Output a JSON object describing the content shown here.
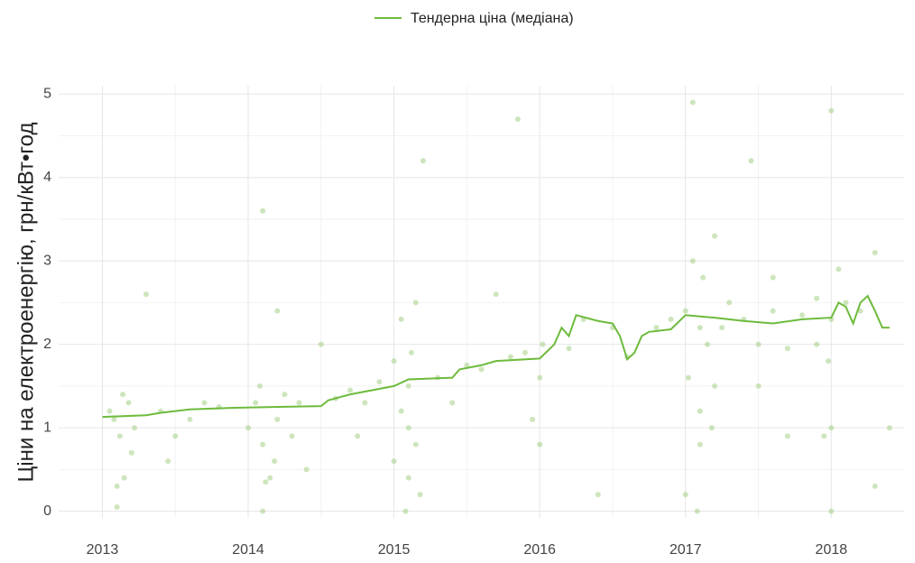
{
  "chart_data": {
    "type": "scatter",
    "y_label": "Ціни на електроенергію, грн/кВт•год",
    "xlim": [
      2012.7,
      2018.5
    ],
    "xticks": [
      2013,
      2014,
      2015,
      2016,
      2017,
      2018
    ],
    "ylim": [
      -0.08,
      5.1
    ],
    "yticks": [
      0,
      1,
      2,
      3,
      4,
      5
    ],
    "grid": true,
    "legend": "top",
    "points": {
      "color": "#9ccc7a",
      "x": [
        2013.08,
        2013.12,
        2013.15,
        2013.1,
        2013.18,
        2013.05,
        2013.2,
        2013.14,
        2013.1,
        2013.22,
        2013.4,
        2013.6,
        2013.7,
        2013.5,
        2013.8,
        2013.3,
        2013.45,
        2014.05,
        2014.1,
        2014.15,
        2014.08,
        2014.2,
        2014.12,
        2014.18,
        2014.1,
        2014.25,
        2014.0,
        2014.3,
        2014.1,
        2014.2,
        2014.35,
        2014.4,
        2014.6,
        2014.7,
        2014.8,
        2014.9,
        2014.75,
        2014.5,
        2015.0,
        2015.05,
        2015.1,
        2015.08,
        2015.12,
        2015.15,
        2015.05,
        2015.1,
        2015.18,
        2015.0,
        2015.2,
        2015.15,
        2015.1,
        2015.3,
        2015.5,
        2015.6,
        2015.8,
        2015.9,
        2015.7,
        2015.4,
        2015.95,
        2016.0,
        2016.0,
        2016.02,
        2015.85,
        2016.3,
        2016.5,
        2016.6,
        2016.2,
        2016.8,
        2016.9,
        2016.4,
        2017.0,
        2017.05,
        2017.1,
        2017.1,
        2017.08,
        2017.15,
        2017.2,
        2017.02,
        2017.12,
        2017.18,
        2017.05,
        2017.25,
        2017.0,
        2017.3,
        2017.1,
        2017.2,
        2017.4,
        2017.5,
        2017.6,
        2017.7,
        2017.8,
        2017.9,
        2017.5,
        2017.7,
        2017.6,
        2017.9,
        2017.45,
        2018.0,
        2018.0,
        2018.0,
        2017.98,
        2018.05,
        2018.0,
        2018.1,
        2018.2,
        2018.3,
        2018.4,
        2018.3,
        2017.95
      ],
      "y": [
        1.1,
        0.9,
        0.4,
        0.05,
        1.3,
        1.2,
        0.7,
        1.4,
        0.3,
        1.0,
        1.2,
        1.1,
        1.3,
        0.9,
        1.25,
        2.6,
        0.6,
        1.3,
        0.8,
        0.4,
        1.5,
        1.1,
        0.35,
        0.6,
        0.0,
        1.4,
        1.0,
        0.9,
        3.6,
        2.4,
        1.3,
        0.5,
        1.35,
        1.45,
        1.3,
        1.55,
        0.9,
        2.0,
        1.8,
        1.2,
        0.4,
        0.0,
        1.9,
        0.8,
        2.3,
        1.5,
        0.2,
        0.6,
        4.2,
        2.5,
        1.0,
        1.6,
        1.75,
        1.7,
        1.85,
        1.9,
        2.6,
        1.3,
        1.1,
        0.8,
        1.6,
        2.0,
        4.7,
        2.3,
        2.2,
        1.85,
        1.95,
        2.2,
        2.3,
        0.2,
        2.4,
        3.0,
        1.2,
        0.8,
        0.0,
        2.0,
        3.3,
        1.6,
        2.8,
        1.0,
        4.9,
        2.2,
        0.2,
        2.5,
        2.2,
        1.5,
        2.3,
        2.0,
        2.4,
        1.95,
        2.35,
        2.0,
        1.5,
        0.9,
        2.8,
        2.55,
        4.2,
        2.3,
        1.0,
        0.0,
        1.8,
        2.9,
        4.8,
        2.5,
        2.4,
        3.1,
        1.0,
        0.3,
        0.9
      ]
    },
    "series": [
      {
        "name": "Тендерна ціна (медіана)",
        "color": "#6dbb3c",
        "x": [
          2013.0,
          2013.3,
          2013.4,
          2013.6,
          2013.9,
          2014.2,
          2014.5,
          2014.55,
          2014.7,
          2014.85,
          2015.0,
          2015.1,
          2015.4,
          2015.45,
          2015.6,
          2015.7,
          2016.0,
          2016.1,
          2016.15,
          2016.2,
          2016.25,
          2016.4,
          2016.5,
          2016.55,
          2016.6,
          2016.65,
          2016.7,
          2016.75,
          2016.9,
          2017.0,
          2017.2,
          2017.4,
          2017.6,
          2017.8,
          2018.0,
          2018.05,
          2018.1,
          2018.15,
          2018.2,
          2018.25,
          2018.3,
          2018.35,
          2018.4
        ],
        "values": [
          1.13,
          1.15,
          1.18,
          1.22,
          1.24,
          1.25,
          1.26,
          1.33,
          1.4,
          1.45,
          1.5,
          1.58,
          1.6,
          1.7,
          1.75,
          1.8,
          1.83,
          2.0,
          2.2,
          2.1,
          2.35,
          2.28,
          2.25,
          2.1,
          1.82,
          1.9,
          2.1,
          2.15,
          2.18,
          2.35,
          2.32,
          2.28,
          2.25,
          2.3,
          2.32,
          2.5,
          2.45,
          2.25,
          2.5,
          2.58,
          2.4,
          2.2,
          2.2
        ]
      }
    ]
  }
}
